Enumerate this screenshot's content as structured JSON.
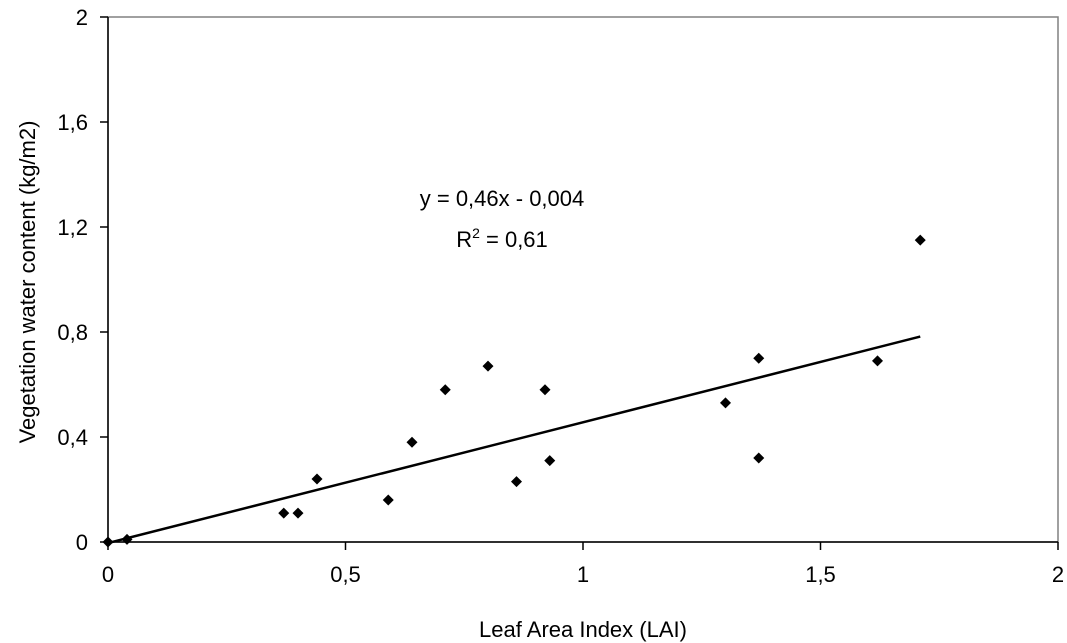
{
  "chart_data": {
    "type": "scatter",
    "title": "",
    "xlabel": "Leaf Area Index (LAI)",
    "ylabel": "Vegetation water content (kg/m2)",
    "xlim": [
      0,
      2
    ],
    "ylim": [
      0,
      2
    ],
    "x_ticks": [
      0,
      0.5,
      1,
      1.5,
      2
    ],
    "x_tick_labels": [
      "0",
      "0,5",
      "1",
      "1,5",
      "2"
    ],
    "y_ticks": [
      0,
      0.4,
      0.8,
      1.2,
      1.6,
      2
    ],
    "y_tick_labels": [
      "0",
      "0,4",
      "0,8",
      "1,2",
      "1,6",
      "2"
    ],
    "grid": false,
    "marker": "diamond",
    "marker_color": "#000000",
    "series": [
      {
        "x": [
          0,
          0.04,
          0.37,
          0.4,
          0.44,
          0.59,
          0.64,
          0.71,
          0.8,
          0.86,
          0.92,
          0.93,
          1.3,
          1.37,
          1.37,
          1.62,
          1.71
        ],
        "y": [
          0,
          0.01,
          0.11,
          0.11,
          0.24,
          0.16,
          0.38,
          0.58,
          0.67,
          0.23,
          0.58,
          0.31,
          0.53,
          0.7,
          0.32,
          0.69,
          1.15
        ]
      }
    ],
    "trendline": {
      "slope": 0.46,
      "intercept": -0.004,
      "x_range": [
        0,
        1.71
      ],
      "equation_text": "y = 0,46x - 0,004",
      "r2_label": "R",
      "r2_superscript": "2",
      "r2_value_text": " = 0,61"
    }
  }
}
